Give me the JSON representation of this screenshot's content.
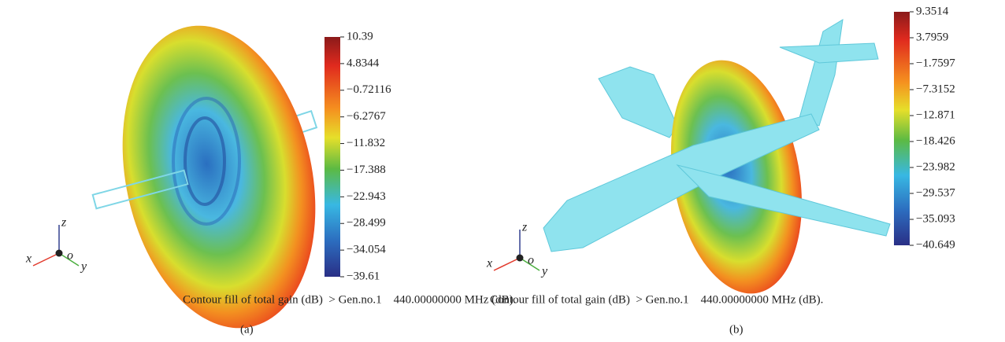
{
  "panels": [
    {
      "colorbar": {
        "ticks": [
          "10.39",
          "4.8344",
          "−0.72116",
          "−6.2767",
          "−11.832",
          "−17.388",
          "−22.943",
          "−28.499",
          "−34.054",
          "−39.61"
        ]
      },
      "axes": {
        "x": "x",
        "y": "y",
        "z": "z",
        "origin": "o"
      },
      "caption": "Contour fill of total gain (dB)  > Gen.no.1    440.00000000 MHz (dB).",
      "label": "(a)"
    },
    {
      "colorbar": {
        "ticks": [
          "9.3514",
          "3.7959",
          "−1.7597",
          "−7.3152",
          "−12.871",
          "−18.426",
          "−23.982",
          "−29.537",
          "−35.093",
          "−40.649"
        ]
      },
      "axes": {
        "x": "x",
        "y": "y",
        "z": "z",
        "origin": "o"
      },
      "caption": "Contour fill of total gain (dB)  > Gen.no.1    440.00000000 MHz (dB).",
      "label": "(b)"
    }
  ]
}
